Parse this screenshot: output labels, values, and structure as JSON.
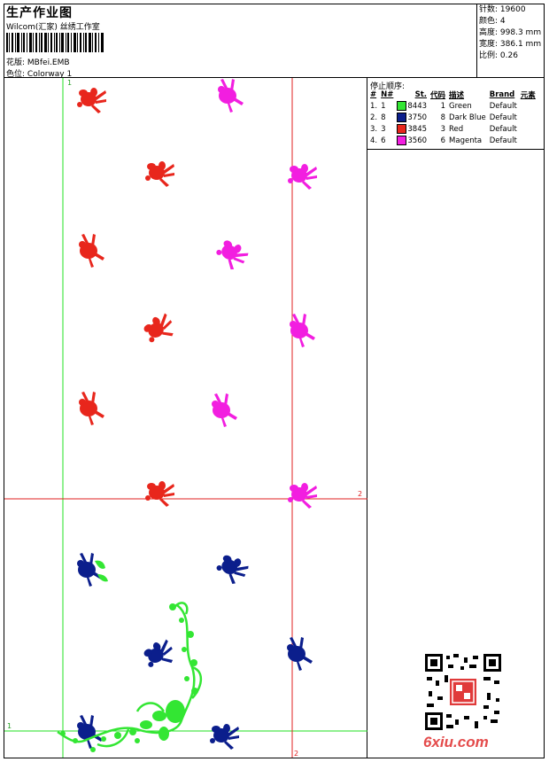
{
  "header": {
    "title": "生产作业图",
    "company": "Wilcom(汇家) 丝绣工作室",
    "design_label": "花版:",
    "design_value": "MBfei.EMB",
    "colorway_label": "色位:",
    "colorway_value": "Colorway 1"
  },
  "stats": [
    {
      "label": "针数:",
      "value": "19600"
    },
    {
      "label": "颜色:",
      "value": "4"
    },
    {
      "label": "高度:",
      "value": "998.3 mm"
    },
    {
      "label": "宽度:",
      "value": "386.1 mm"
    },
    {
      "label": "比例:",
      "value": "0.26"
    }
  ],
  "stop_sequence": {
    "title": "停止顺序:",
    "columns": [
      "#",
      "N#",
      "St.",
      "代码",
      "描述",
      "Brand",
      "元素"
    ],
    "rows": [
      {
        "idx": "1.",
        "n": "1",
        "color": "#33e633",
        "st": "8443",
        "code": "1",
        "desc": "Green",
        "brand": "Default"
      },
      {
        "idx": "2.",
        "n": "8",
        "color": "#0b1e8c",
        "st": "3750",
        "code": "8",
        "desc": "Dark Blue",
        "brand": "Default"
      },
      {
        "idx": "3.",
        "n": "3",
        "color": "#e8261c",
        "st": "3845",
        "code": "3",
        "desc": "Red",
        "brand": "Default"
      },
      {
        "idx": "4.",
        "n": "6",
        "color": "#f21ee0",
        "st": "3560",
        "code": "6",
        "desc": "Magenta",
        "brand": "Default"
      }
    ]
  },
  "guides": {
    "left_vertical": "1",
    "bottom_horizontal": "1",
    "right_horizontal": "2",
    "bottom_vertical": "2"
  },
  "watermark": "6xiu.com"
}
